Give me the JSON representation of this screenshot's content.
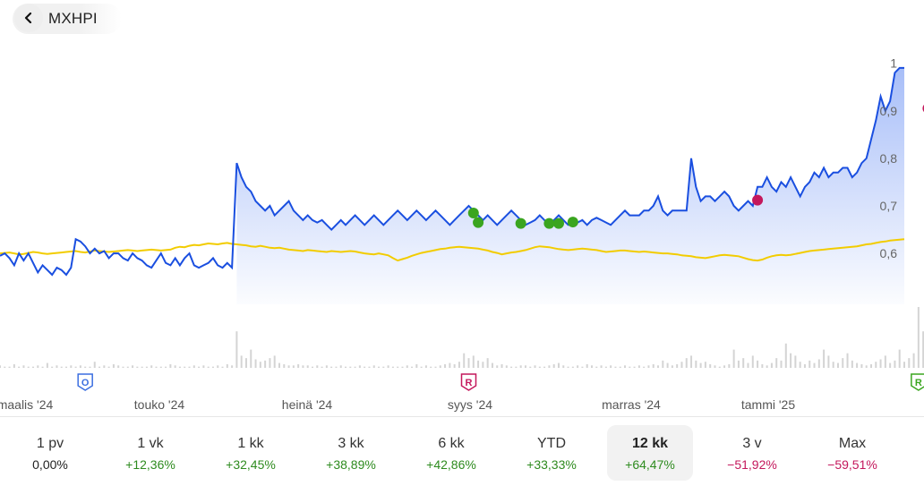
{
  "header": {
    "ticker": "MXHPI",
    "back_icon": "chevron-left-icon"
  },
  "colors": {
    "price_line": "#1a4fe0",
    "benchmark_line": "#f2cc00",
    "positive": "#2e8b1f",
    "negative": "#c4185c",
    "volume": "#d4d4d4",
    "buy_marker": "#3aa51f",
    "sell_marker": "#c4185c"
  },
  "chart_data": {
    "type": "line",
    "y_ticks": [
      "1",
      "0,9",
      "0,8",
      "0,7",
      "0,6"
    ],
    "ylim": [
      0.54,
      1.02
    ],
    "x_ticks": [
      "maalis '24",
      "touko '24",
      "heinä '24",
      "syys '24",
      "marras '24",
      "tammi '25"
    ],
    "series": [
      {
        "values": [
          0.595,
          0.6,
          0.59,
          0.575,
          0.6,
          0.585,
          0.6,
          0.58,
          0.56,
          0.575,
          0.565,
          0.555,
          0.57,
          0.565,
          0.555,
          0.57,
          0.63,
          0.625,
          0.615,
          0.6,
          0.61,
          0.6,
          0.605,
          0.59,
          0.6,
          0.6,
          0.59,
          0.585,
          0.6,
          0.59,
          0.585,
          0.575,
          0.57,
          0.585,
          0.6,
          0.58,
          0.575,
          0.59,
          0.575,
          0.59,
          0.6,
          0.575,
          0.57,
          0.575,
          0.58,
          0.59,
          0.575,
          0.57,
          0.58,
          0.57,
          0.79,
          0.76,
          0.74,
          0.73,
          0.71,
          0.7,
          0.69,
          0.7,
          0.68,
          0.69,
          0.7,
          0.71,
          0.69,
          0.68,
          0.67,
          0.68,
          0.67,
          0.665,
          0.67,
          0.66,
          0.65,
          0.66,
          0.67,
          0.66,
          0.67,
          0.68,
          0.67,
          0.66,
          0.67,
          0.68,
          0.67,
          0.66,
          0.67,
          0.68,
          0.69,
          0.68,
          0.67,
          0.68,
          0.69,
          0.68,
          0.67,
          0.68,
          0.69,
          0.68,
          0.67,
          0.66,
          0.67,
          0.68,
          0.69,
          0.7,
          0.69,
          0.68,
          0.67,
          0.68,
          0.67,
          0.66,
          0.67,
          0.68,
          0.69,
          0.68,
          0.67,
          0.66,
          0.665,
          0.67,
          0.68,
          0.67,
          0.66,
          0.67,
          0.68,
          0.67,
          0.66,
          0.66,
          0.665,
          0.67,
          0.66,
          0.67,
          0.675,
          0.67,
          0.665,
          0.66,
          0.67,
          0.68,
          0.69,
          0.68,
          0.68,
          0.68,
          0.69,
          0.69,
          0.7,
          0.72,
          0.69,
          0.68,
          0.69,
          0.69,
          0.69,
          0.69,
          0.8,
          0.74,
          0.71,
          0.72,
          0.72,
          0.71,
          0.72,
          0.73,
          0.72,
          0.7,
          0.69,
          0.7,
          0.71,
          0.7,
          0.74,
          0.74,
          0.76,
          0.74,
          0.73,
          0.75,
          0.74,
          0.76,
          0.74,
          0.72,
          0.74,
          0.75,
          0.77,
          0.76,
          0.78,
          0.76,
          0.77,
          0.77,
          0.78,
          0.78,
          0.76,
          0.77,
          0.79,
          0.8,
          0.84,
          0.88,
          0.93,
          0.9,
          0.92,
          0.98,
          0.99,
          0.99
        ],
        "color": "#1a4fe0"
      },
      {
        "values": [
          0.6,
          0.601,
          0.602,
          0.6,
          0.598,
          0.599,
          0.601,
          0.603,
          0.602,
          0.6,
          0.599,
          0.6,
          0.601,
          0.602,
          0.603,
          0.604,
          0.605,
          0.603,
          0.602,
          0.604,
          0.606,
          0.605,
          0.604,
          0.603,
          0.604,
          0.605,
          0.606,
          0.607,
          0.606,
          0.605,
          0.606,
          0.607,
          0.608,
          0.607,
          0.606,
          0.607,
          0.608,
          0.612,
          0.614,
          0.613,
          0.616,
          0.618,
          0.617,
          0.619,
          0.621,
          0.62,
          0.619,
          0.621,
          0.622,
          0.62,
          0.619,
          0.618,
          0.617,
          0.615,
          0.614,
          0.616,
          0.614,
          0.612,
          0.611,
          0.612,
          0.61,
          0.608,
          0.607,
          0.606,
          0.605,
          0.607,
          0.606,
          0.605,
          0.604,
          0.603,
          0.605,
          0.604,
          0.603,
          0.604,
          0.605,
          0.604,
          0.602,
          0.6,
          0.599,
          0.598,
          0.6,
          0.598,
          0.596,
          0.59,
          0.585,
          0.588,
          0.591,
          0.595,
          0.598,
          0.601,
          0.603,
          0.605,
          0.607,
          0.609,
          0.61,
          0.612,
          0.613,
          0.614,
          0.613,
          0.612,
          0.611,
          0.61,
          0.608,
          0.606,
          0.603,
          0.601,
          0.598,
          0.6,
          0.602,
          0.603,
          0.605,
          0.607,
          0.61,
          0.613,
          0.615,
          0.614,
          0.613,
          0.611,
          0.609,
          0.608,
          0.607,
          0.608,
          0.609,
          0.61,
          0.609,
          0.608,
          0.607,
          0.605,
          0.603,
          0.604,
          0.605,
          0.606,
          0.606,
          0.605,
          0.604,
          0.603,
          0.604,
          0.603,
          0.602,
          0.601,
          0.6,
          0.6,
          0.599,
          0.598,
          0.596,
          0.595,
          0.594,
          0.592,
          0.591,
          0.59,
          0.592,
          0.594,
          0.596,
          0.597,
          0.596,
          0.595,
          0.594,
          0.591,
          0.588,
          0.586,
          0.585,
          0.587,
          0.591,
          0.594,
          0.596,
          0.597,
          0.596,
          0.597,
          0.599,
          0.601,
          0.603,
          0.605,
          0.606,
          0.607,
          0.608,
          0.609,
          0.61,
          0.611,
          0.612,
          0.613,
          0.614,
          0.615,
          0.617,
          0.619,
          0.62,
          0.622,
          0.624,
          0.625,
          0.627,
          0.628,
          0.629,
          0.63
        ],
        "color": "#f2cc00"
      }
    ],
    "volume": [
      2,
      1,
      1,
      3,
      1,
      2,
      1,
      1,
      2,
      1,
      4,
      1,
      2,
      1,
      1,
      2,
      1,
      2,
      1,
      1,
      5,
      1,
      2,
      1,
      3,
      2,
      1,
      1,
      2,
      1,
      1,
      1,
      2,
      1,
      1,
      1,
      3,
      2,
      1,
      1,
      1,
      2,
      1,
      2,
      1,
      1,
      2,
      1,
      3,
      2,
      30,
      10,
      8,
      15,
      7,
      5,
      6,
      8,
      10,
      4,
      3,
      2,
      2,
      3,
      2,
      2,
      1,
      2,
      1,
      2,
      1,
      1,
      2,
      1,
      1,
      1,
      2,
      1,
      1,
      2,
      1,
      1,
      2,
      1,
      1,
      1,
      2,
      1,
      3,
      1,
      2,
      1,
      1,
      2,
      3,
      4,
      3,
      5,
      12,
      8,
      10,
      6,
      5,
      8,
      4,
      2,
      3,
      2,
      1,
      1,
      2,
      2,
      1,
      2,
      1,
      1,
      2,
      3,
      4,
      2,
      1,
      1,
      2,
      1,
      3,
      2,
      1,
      2,
      1,
      2,
      1,
      1,
      2,
      1,
      1,
      2,
      1,
      2,
      3,
      2,
      6,
      4,
      2,
      3,
      5,
      8,
      10,
      6,
      4,
      5,
      3,
      2,
      1,
      2,
      3,
      15,
      6,
      8,
      4,
      10,
      6,
      3,
      2,
      4,
      8,
      6,
      20,
      12,
      10,
      5,
      3,
      6,
      4,
      7,
      15,
      10,
      5,
      4,
      8,
      12,
      6,
      4,
      3,
      2,
      3,
      5,
      7,
      10,
      4,
      6,
      15,
      5,
      8,
      12,
      50,
      30,
      20,
      25,
      15,
      10
    ],
    "buy_markers": [
      {
        "i": 100,
        "v": 0.685
      },
      {
        "i": 101,
        "v": 0.665
      },
      {
        "i": 110,
        "v": 0.663
      },
      {
        "i": 116,
        "v": 0.663
      },
      {
        "i": 118,
        "v": 0.663
      },
      {
        "i": 121,
        "v": 0.666
      }
    ],
    "sell_markers": [
      {
        "i": 160,
        "v": 0.712
      },
      {
        "i": 196,
        "v": 0.905
      }
    ],
    "events": [
      {
        "i": 18,
        "letter": "O",
        "color": "#3b6fe0"
      },
      {
        "i": 99,
        "letter": "R",
        "color": "#c4185c"
      },
      {
        "i": 194,
        "letter": "R",
        "color": "#3aa51f"
      }
    ]
  },
  "periods": [
    {
      "label": "1 pv",
      "change": "0,00%",
      "tone": "zero",
      "active": false
    },
    {
      "label": "1 vk",
      "change": "+12,36%",
      "tone": "pos",
      "active": false
    },
    {
      "label": "1 kk",
      "change": "+32,45%",
      "tone": "pos",
      "active": false
    },
    {
      "label": "3 kk",
      "change": "+38,89%",
      "tone": "pos",
      "active": false
    },
    {
      "label": "6 kk",
      "change": "+42,86%",
      "tone": "pos",
      "active": false
    },
    {
      "label": "YTD",
      "change": "+33,33%",
      "tone": "pos",
      "active": false
    },
    {
      "label": "12 kk",
      "change": "+64,47%",
      "tone": "pos",
      "active": true
    },
    {
      "label": "3 v",
      "change": "−51,92%",
      "tone": "neg",
      "active": false
    },
    {
      "label": "Max",
      "change": "−59,51%",
      "tone": "neg",
      "active": false
    }
  ]
}
